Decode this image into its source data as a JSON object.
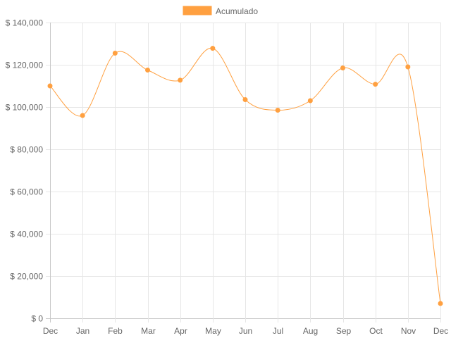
{
  "chart_data": {
    "type": "line",
    "categories": [
      "Dec",
      "Jan",
      "Feb",
      "Mar",
      "Apr",
      "May",
      "Jun",
      "Jul",
      "Aug",
      "Sep",
      "Oct",
      "Nov",
      "Dec"
    ],
    "series": [
      {
        "name": "Acumulado",
        "values": [
          110000,
          96000,
          125500,
          117500,
          112700,
          127800,
          103500,
          98500,
          103000,
          118500,
          110800,
          119000,
          7000
        ],
        "color": "#ffa040"
      }
    ],
    "ylim": [
      0,
      140000
    ],
    "y_ticks": [
      "$ 140,000",
      "$ 120,000",
      "$ 100,000",
      "$ 80,000",
      "$ 60,000",
      "$ 40,000",
      "$ 20,000",
      "$ 0"
    ],
    "y_tick_values": [
      140000,
      120000,
      100000,
      80000,
      60000,
      40000,
      20000,
      0
    ],
    "grid": true,
    "legend_position": "top",
    "title": "",
    "xlabel": "",
    "ylabel": ""
  }
}
